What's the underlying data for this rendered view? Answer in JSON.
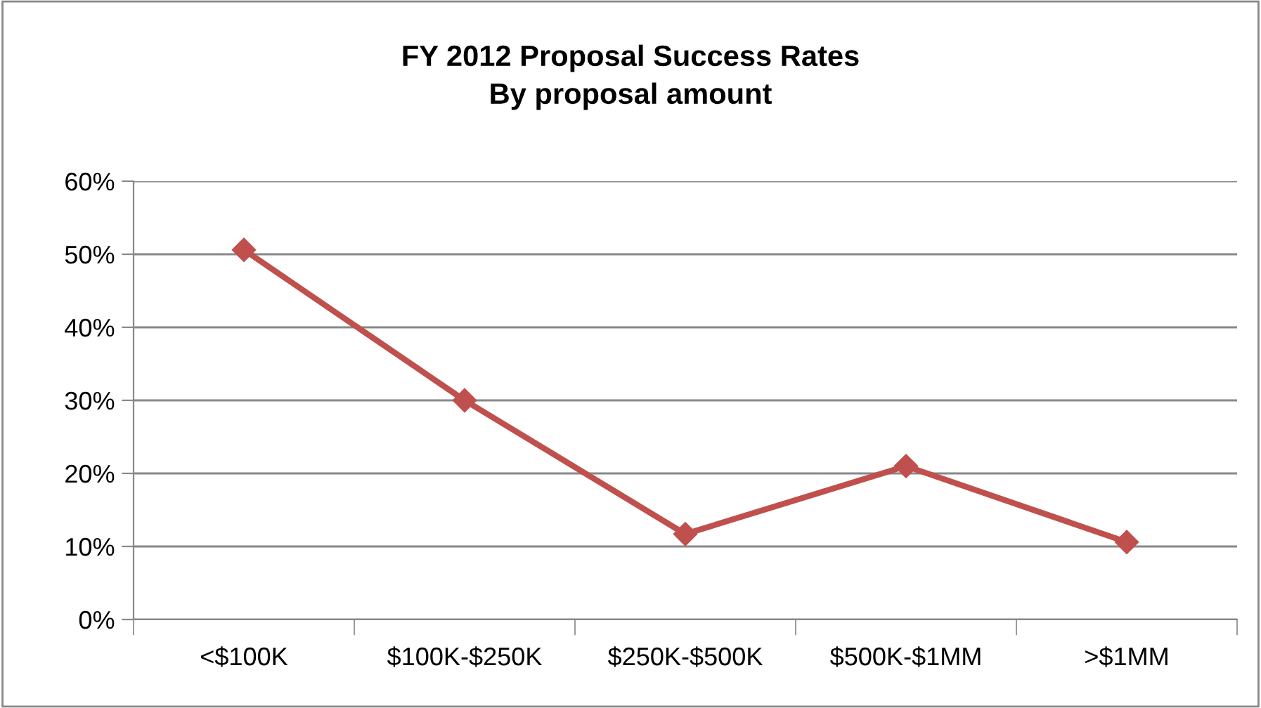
{
  "chart_data": {
    "type": "line",
    "title": "FY 2012 Proposal Success Rates\nBy proposal amount",
    "categories": [
      "<$100K",
      "$100K-$250K",
      "$250K-$500K",
      "$500K-$1MM",
      ">$1MM"
    ],
    "series": [
      {
        "color": "#c0504d",
        "values": [
          50.6,
          30,
          11.7,
          21,
          10.6
        ]
      }
    ],
    "ylim": [
      0,
      60
    ],
    "yticks": [
      {
        "value": 0,
        "label": "0%"
      },
      {
        "value": 10,
        "label": "10%"
      },
      {
        "value": 20,
        "label": "20%"
      },
      {
        "value": 30,
        "label": "30%"
      },
      {
        "value": 40,
        "label": "40%"
      },
      {
        "value": 50,
        "label": "50%"
      },
      {
        "value": 60,
        "label": "60%"
      }
    ],
    "grid": "y",
    "marker": "diamond",
    "line_style": "solid",
    "legend": false
  }
}
